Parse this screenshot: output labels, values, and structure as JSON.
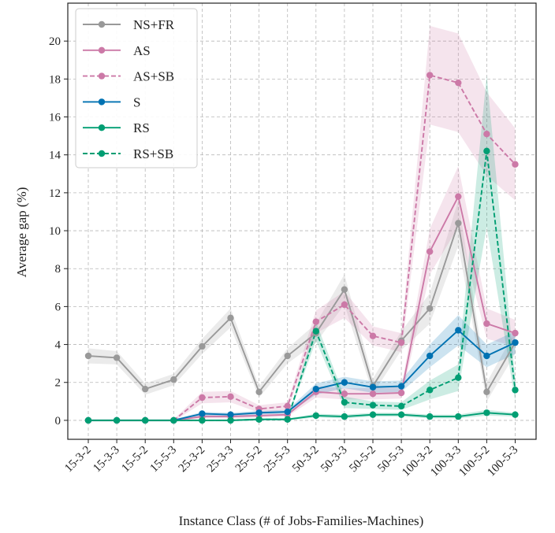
{
  "chart_data": {
    "type": "line",
    "xlabel": "Instance Class (# of Jobs-Families-Machines)",
    "ylabel": "Average gap (%)",
    "ylim": [
      -1,
      22
    ],
    "yticks": [
      0,
      2,
      4,
      6,
      8,
      10,
      12,
      14,
      16,
      18,
      20
    ],
    "grid": true,
    "legend_position": "top-left",
    "categories": [
      "15-3-2",
      "15-3-3",
      "15-5-2",
      "15-5-3",
      "25-3-2",
      "25-3-3",
      "25-5-2",
      "25-5-3",
      "50-3-2",
      "50-3-3",
      "50-5-2",
      "50-5-3",
      "100-3-2",
      "100-3-3",
      "100-5-2",
      "100-5-3"
    ],
    "series": [
      {
        "name": "NS+FR",
        "color": "#999999",
        "dash": false,
        "values": [
          3.4,
          3.3,
          1.65,
          2.15,
          3.9,
          5.4,
          1.5,
          3.4,
          4.6,
          6.9,
          1.8,
          4.2,
          5.9,
          10.4,
          1.5,
          4.1
        ],
        "band": [
          0.4,
          0.35,
          0.3,
          0.3,
          0.4,
          0.5,
          0.3,
          0.4,
          0.5,
          0.8,
          0.4,
          0.5,
          0.8,
          1.2,
          0.5,
          0.6
        ]
      },
      {
        "name": "AS",
        "color": "#cc79a7",
        "dash": false,
        "values": [
          0.0,
          0.0,
          0.0,
          0.0,
          0.2,
          0.2,
          0.25,
          0.3,
          1.5,
          1.4,
          1.4,
          1.45,
          8.9,
          11.8,
          5.1,
          4.6
        ],
        "band": [
          0.05,
          0.05,
          0.05,
          0.05,
          0.1,
          0.1,
          0.1,
          0.1,
          0.3,
          0.3,
          0.3,
          0.3,
          1.2,
          1.6,
          0.8,
          0.7
        ]
      },
      {
        "name": "AS+SB",
        "color": "#cc79a7",
        "dash": true,
        "values": [
          0.0,
          0.0,
          0.0,
          0.0,
          1.2,
          1.25,
          0.6,
          0.75,
          5.2,
          6.1,
          4.45,
          4.1,
          18.2,
          17.8,
          15.1,
          13.5
        ],
        "band": [
          0.05,
          0.05,
          0.05,
          0.05,
          0.3,
          0.3,
          0.2,
          0.2,
          0.6,
          0.7,
          0.5,
          0.5,
          2.6,
          2.6,
          2.2,
          1.9
        ]
      },
      {
        "name": "S",
        "color": "#0072b2",
        "dash": false,
        "values": [
          0.0,
          0.0,
          0.0,
          0.0,
          0.35,
          0.3,
          0.4,
          0.45,
          1.65,
          2.0,
          1.75,
          1.8,
          3.4,
          4.75,
          3.4,
          4.1
        ],
        "band": [
          0.05,
          0.05,
          0.05,
          0.05,
          0.1,
          0.1,
          0.1,
          0.1,
          0.3,
          0.3,
          0.3,
          0.3,
          0.6,
          0.8,
          0.6,
          0.6
        ]
      },
      {
        "name": "RS",
        "color": "#009e73",
        "dash": false,
        "values": [
          0.0,
          0.0,
          0.0,
          0.0,
          0.0,
          0.0,
          0.05,
          0.05,
          0.25,
          0.2,
          0.3,
          0.3,
          0.2,
          0.2,
          0.4,
          0.3
        ],
        "band": [
          0.05,
          0.05,
          0.05,
          0.05,
          0.05,
          0.05,
          0.05,
          0.05,
          0.1,
          0.1,
          0.1,
          0.1,
          0.1,
          0.1,
          0.15,
          0.1
        ]
      },
      {
        "name": "RS+SB",
        "color": "#009e73",
        "dash": true,
        "values": [
          0.0,
          0.0,
          0.0,
          0.0,
          0.0,
          0.0,
          0.05,
          0.05,
          4.7,
          0.95,
          0.8,
          0.75,
          1.6,
          2.25,
          14.2,
          1.6
        ],
        "band": [
          0.05,
          0.05,
          0.05,
          0.05,
          0.05,
          0.05,
          0.05,
          0.05,
          0.5,
          0.3,
          0.2,
          0.2,
          0.5,
          0.7,
          4.0,
          0.6
        ]
      }
    ]
  }
}
